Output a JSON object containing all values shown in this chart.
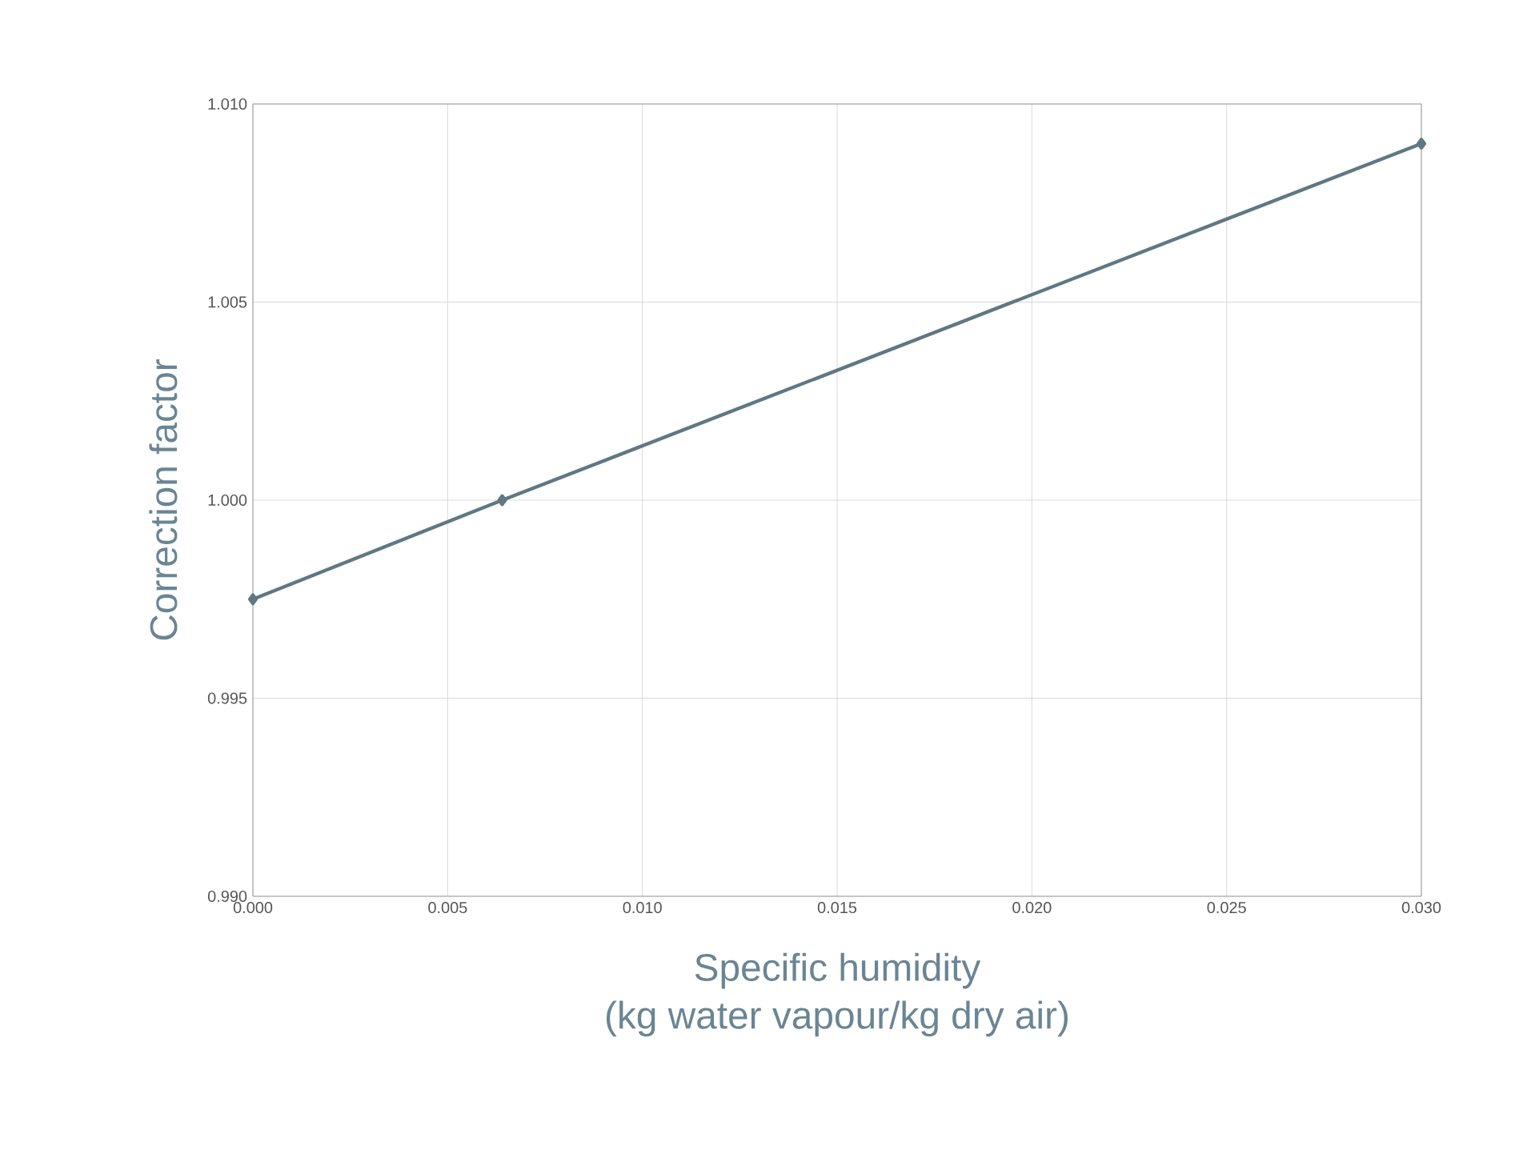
{
  "chart_data": {
    "type": "line",
    "xlabel": "Specific humidity\n(kg water vapour/kg dry air)",
    "ylabel": "Correction factor",
    "x": [
      0,
      0.0064,
      0.03
    ],
    "series": [
      {
        "color": "#5f7883",
        "values": [
          0.9975,
          1.0,
          1.009
        ]
      }
    ],
    "xlim": [
      0,
      0.03
    ],
    "xticks": [
      {
        "value": 0,
        "label": "0.000"
      },
      {
        "value": 0.005,
        "label": "0.005"
      },
      {
        "value": 0.01,
        "label": "0.010"
      },
      {
        "value": 0.015,
        "label": "0.015"
      },
      {
        "value": 0.02,
        "label": "0.020"
      },
      {
        "value": 0.025,
        "label": "0.025"
      },
      {
        "value": 0.03,
        "label": "0.030"
      }
    ],
    "ylim": [
      0.99,
      1.01
    ],
    "yticks": [
      {
        "value": 0.99,
        "label": "0.990"
      },
      {
        "value": 0.995,
        "label": "0.995"
      },
      {
        "value": 1.0,
        "label": "1.000"
      },
      {
        "value": 1.005,
        "label": "1.005"
      },
      {
        "value": 1.01,
        "label": "1.010"
      }
    ],
    "grid": true,
    "marker": "diamond",
    "line_style": "solid"
  }
}
